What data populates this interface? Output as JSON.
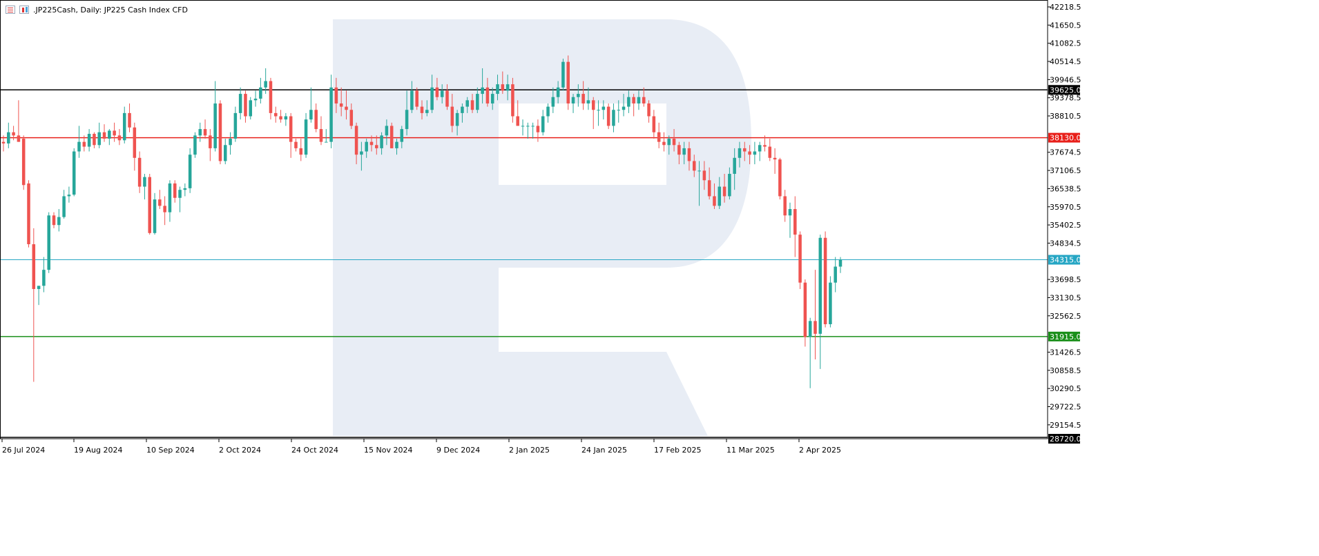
{
  "header": {
    "title": ".JP225Cash, Daily:  JP225 Cash Index CFD",
    "icons": [
      "price-list-icon",
      "candlestick-icon"
    ]
  },
  "colors": {
    "bull": "#26a69a",
    "bear": "#ef5350",
    "resistance_high": "#000000",
    "resistance": "#e8201a",
    "current_price": "#26a6c4",
    "support": "#1a8f1a",
    "watermark": "#e8edf5"
  },
  "chart_data": {
    "type": "candlestick",
    "title": ".JP225Cash, Daily:  JP225 Cash Index CFD",
    "ylim": [
      28720.0,
      42500.0
    ],
    "y_ticks": [
      42218.5,
      41650.5,
      41082.5,
      40514.5,
      39946.5,
      39378.5,
      38810.5,
      37674.5,
      37106.5,
      36538.5,
      35970.5,
      35402.5,
      34834.5,
      33698.5,
      33130.5,
      32562.5,
      31426.5,
      30858.5,
      30290.5,
      29722.5,
      29154.5
    ],
    "x_labels": [
      "26 Jul 2024",
      "19 Aug 2024",
      "10 Sep 2024",
      "2 Oct 2024",
      "24 Oct 2024",
      "15 Nov 2024",
      "9 Dec 2024",
      "2 Jan 2025",
      "24 Jan 2025",
      "17 Feb 2025",
      "11 Mar 2025",
      "2 Apr 2025"
    ],
    "levels": [
      {
        "value": 39625.0,
        "label": "39625.0",
        "kind": "resistance_high"
      },
      {
        "value": 38130.0,
        "label": "38130.0",
        "kind": "resistance"
      },
      {
        "value": 34315.0,
        "label": "34315.0",
        "kind": "current_price"
      },
      {
        "value": 31915.0,
        "label": "31915.0",
        "kind": "support"
      },
      {
        "value": 28720.0,
        "label": "28720.0",
        "kind": "bottom"
      }
    ],
    "candles": [
      [
        38000,
        38200,
        37700,
        37950
      ],
      [
        37950,
        38600,
        37800,
        38300
      ],
      [
        38300,
        38500,
        38050,
        38200
      ],
      [
        38200,
        39300,
        38000,
        38000
      ],
      [
        38100,
        38200,
        36500,
        36650
      ],
      [
        36700,
        36800,
        34700,
        34800
      ],
      [
        34800,
        35300,
        30500,
        33400
      ],
      [
        33400,
        33500,
        32900,
        33500
      ],
      [
        33500,
        34400,
        33300,
        34000
      ],
      [
        34000,
        35800,
        33900,
        35700
      ],
      [
        35700,
        35800,
        35300,
        35400
      ],
      [
        35400,
        35900,
        35200,
        35650
      ],
      [
        35650,
        36500,
        35600,
        36300
      ],
      [
        36300,
        36600,
        36100,
        36350
      ],
      [
        36350,
        37800,
        36300,
        37700
      ],
      [
        37700,
        38500,
        37500,
        38000
      ],
      [
        38000,
        38200,
        37700,
        37850
      ],
      [
        37850,
        38400,
        37700,
        38250
      ],
      [
        38250,
        38300,
        37800,
        37900
      ],
      [
        37900,
        38600,
        37800,
        38300
      ],
      [
        38300,
        38550,
        38000,
        38100
      ],
      [
        38100,
        38400,
        37900,
        38350
      ],
      [
        38350,
        38600,
        38000,
        38200
      ],
      [
        38200,
        38400,
        37900,
        38050
      ],
      [
        38050,
        39100,
        37950,
        38900
      ],
      [
        38900,
        39200,
        38300,
        38450
      ],
      [
        38450,
        38600,
        37100,
        37500
      ],
      [
        37500,
        37700,
        36400,
        36600
      ],
      [
        36600,
        37000,
        36200,
        36900
      ],
      [
        36900,
        37000,
        35100,
        35150
      ],
      [
        35150,
        36400,
        35100,
        36200
      ],
      [
        36200,
        36500,
        35900,
        36000
      ],
      [
        36000,
        36300,
        35400,
        35800
      ],
      [
        35800,
        36800,
        35500,
        36700
      ],
      [
        36700,
        36800,
        36100,
        36250
      ],
      [
        36250,
        36600,
        35800,
        36500
      ],
      [
        36500,
        36700,
        36300,
        36550
      ],
      [
        36550,
        37800,
        36400,
        37600
      ],
      [
        37600,
        38300,
        37500,
        38200
      ],
      [
        38200,
        38600,
        38000,
        38400
      ],
      [
        38400,
        38700,
        38100,
        38200
      ],
      [
        38200,
        38400,
        37400,
        37800
      ],
      [
        37800,
        39900,
        37700,
        39200
      ],
      [
        39200,
        39300,
        37300,
        37400
      ],
      [
        37400,
        38100,
        37300,
        37900
      ],
      [
        37900,
        38300,
        37600,
        38100
      ],
      [
        38100,
        39100,
        38000,
        38900
      ],
      [
        38900,
        39700,
        38700,
        39500
      ],
      [
        39500,
        39600,
        38600,
        38800
      ],
      [
        38800,
        39400,
        38700,
        39300
      ],
      [
        39300,
        39600,
        39100,
        39350
      ],
      [
        39350,
        40000,
        39200,
        39700
      ],
      [
        39700,
        40300,
        39500,
        39900
      ],
      [
        39900,
        40000,
        38700,
        38900
      ],
      [
        38900,
        39100,
        38600,
        38800
      ],
      [
        38800,
        39000,
        38600,
        38700
      ],
      [
        38700,
        38900,
        38500,
        38800
      ],
      [
        38800,
        38900,
        37500,
        38000
      ],
      [
        38000,
        38100,
        37700,
        37800
      ],
      [
        37800,
        38100,
        37400,
        37600
      ],
      [
        37600,
        38900,
        37500,
        38700
      ],
      [
        38700,
        39700,
        38600,
        39000
      ],
      [
        39000,
        39200,
        38300,
        38400
      ],
      [
        38400,
        38800,
        37900,
        38000
      ],
      [
        38000,
        38400,
        38000,
        38000
      ],
      [
        38000,
        40100,
        37800,
        39700
      ],
      [
        39700,
        40000,
        38900,
        39200
      ],
      [
        39200,
        39700,
        38800,
        39100
      ],
      [
        39100,
        39600,
        38700,
        39000
      ],
      [
        39000,
        39200,
        38400,
        38500
      ],
      [
        38500,
        38600,
        37300,
        37600
      ],
      [
        37600,
        38000,
        37100,
        37700
      ],
      [
        37700,
        38100,
        37500,
        38000
      ],
      [
        38000,
        38200,
        37700,
        37900
      ],
      [
        37900,
        38200,
        37600,
        37800
      ],
      [
        37800,
        38300,
        37600,
        38200
      ],
      [
        38200,
        38700,
        37900,
        38500
      ],
      [
        38500,
        38600,
        37800,
        37800
      ],
      [
        37800,
        38100,
        37600,
        38000
      ],
      [
        38000,
        38500,
        37800,
        38400
      ],
      [
        38400,
        39600,
        38200,
        39000
      ],
      [
        39000,
        39900,
        38900,
        39600
      ],
      [
        39600,
        39700,
        39000,
        39100
      ],
      [
        39100,
        39300,
        38700,
        38900
      ],
      [
        38900,
        39300,
        38800,
        39000
      ],
      [
        39000,
        40100,
        38900,
        39700
      ],
      [
        39700,
        40000,
        39300,
        39400
      ],
      [
        39400,
        39800,
        39200,
        39600
      ],
      [
        39600,
        39800,
        39000,
        39100
      ],
      [
        39100,
        39500,
        38300,
        38500
      ],
      [
        38500,
        39000,
        38200,
        38900
      ],
      [
        38900,
        39200,
        38600,
        39100
      ],
      [
        39100,
        39400,
        38900,
        39300
      ],
      [
        39300,
        39500,
        38900,
        39000
      ],
      [
        39000,
        39700,
        38900,
        39500
      ],
      [
        39500,
        40300,
        39200,
        39700
      ],
      [
        39700,
        40000,
        39100,
        39200
      ],
      [
        39200,
        39700,
        39000,
        39500
      ],
      [
        39500,
        40100,
        39300,
        39800
      ],
      [
        39800,
        40200,
        39500,
        39600
      ],
      [
        39600,
        40100,
        39300,
        39800
      ],
      [
        39800,
        40000,
        38600,
        38800
      ],
      [
        38800,
        39300,
        38500,
        38500
      ],
      [
        38500,
        38700,
        38200,
        38500
      ],
      [
        38500,
        38600,
        38100,
        38500
      ],
      [
        38500,
        38600,
        38100,
        38500
      ],
      [
        38500,
        38700,
        38000,
        38300
      ],
      [
        38300,
        39000,
        38200,
        38800
      ],
      [
        38800,
        39200,
        38600,
        39100
      ],
      [
        39100,
        39700,
        38900,
        39400
      ],
      [
        39400,
        39900,
        39200,
        39700
      ],
      [
        39700,
        40600,
        39600,
        40500
      ],
      [
        40500,
        40700,
        39000,
        39200
      ],
      [
        39200,
        39500,
        38900,
        39400
      ],
      [
        39400,
        39800,
        39100,
        39500
      ],
      [
        39500,
        39900,
        39000,
        39200
      ],
      [
        39200,
        39700,
        39000,
        39300
      ],
      [
        39300,
        39400,
        38400,
        39000
      ],
      [
        39000,
        39300,
        38500,
        39000
      ],
      [
        39000,
        39300,
        38700,
        39100
      ],
      [
        39100,
        39200,
        38400,
        38500
      ],
      [
        38500,
        39200,
        38300,
        39000
      ],
      [
        39000,
        39300,
        38600,
        39000
      ],
      [
        39000,
        39500,
        38800,
        39100
      ],
      [
        39100,
        39600,
        38900,
        39400
      ],
      [
        39400,
        39500,
        38800,
        39200
      ],
      [
        39200,
        39600,
        39000,
        39400
      ],
      [
        39400,
        39700,
        39100,
        39200
      ],
      [
        39200,
        39300,
        38600,
        38800
      ],
      [
        38800,
        39000,
        38100,
        38300
      ],
      [
        38300,
        38600,
        37800,
        38000
      ],
      [
        38000,
        38300,
        37700,
        37900
      ],
      [
        37900,
        38200,
        37600,
        38100
      ],
      [
        38100,
        38400,
        37700,
        37900
      ],
      [
        37900,
        38000,
        37300,
        37600
      ],
      [
        37600,
        38000,
        37300,
        37800
      ],
      [
        37800,
        38000,
        37100,
        37400
      ],
      [
        37400,
        37600,
        36900,
        37100
      ],
      [
        37100,
        37400,
        36000,
        37100
      ],
      [
        37100,
        37400,
        36500,
        36800
      ],
      [
        36800,
        37200,
        36200,
        36300
      ],
      [
        36300,
        36700,
        35900,
        36000
      ],
      [
        36000,
        36900,
        35900,
        36600
      ],
      [
        36600,
        37000,
        36100,
        36300
      ],
      [
        36300,
        37200,
        36200,
        37000
      ],
      [
        37000,
        37800,
        36500,
        37500
      ],
      [
        37500,
        38000,
        37200,
        37800
      ],
      [
        37800,
        38000,
        37400,
        37700
      ],
      [
        37700,
        37900,
        37300,
        37600
      ],
      [
        37600,
        38000,
        37300,
        37700
      ],
      [
        37700,
        38000,
        37400,
        37900
      ],
      [
        37900,
        38200,
        37700,
        37850
      ],
      [
        37850,
        38100,
        37400,
        37500
      ],
      [
        37500,
        37800,
        37000,
        37450
      ],
      [
        37450,
        37500,
        36200,
        36300
      ],
      [
        36300,
        36500,
        35500,
        35700
      ],
      [
        35700,
        36100,
        35000,
        35900
      ],
      [
        35900,
        36300,
        34400,
        35100
      ],
      [
        35100,
        35200,
        33400,
        33600
      ],
      [
        33600,
        33700,
        31600,
        31900
      ],
      [
        31900,
        32500,
        30300,
        32400
      ],
      [
        32400,
        34000,
        31200,
        32000
      ],
      [
        32000,
        35100,
        30900,
        35000
      ],
      [
        35000,
        35200,
        32200,
        32300
      ],
      [
        32300,
        33800,
        32200,
        33600
      ],
      [
        33600,
        34400,
        33300,
        34100
      ],
      [
        34100,
        34400,
        33900,
        34315
      ]
    ]
  }
}
